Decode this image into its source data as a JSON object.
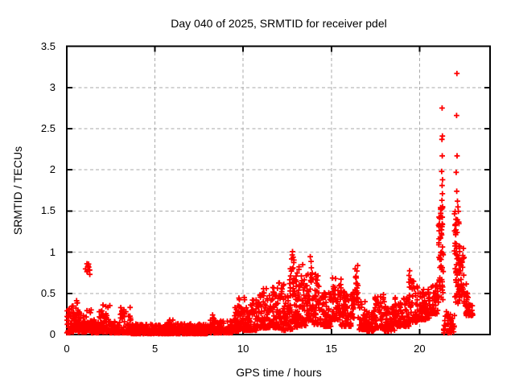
{
  "chart": {
    "title": "Day 040 of 2025, SRMTID for receiver pdel",
    "xlabel": "GPS time / hours",
    "ylabel": "SRMTID / TECUs"
  },
  "colors": {
    "marker": "#ff0000",
    "grid": "#aaaaaa",
    "border": "#000000",
    "background": "#ffffff",
    "text": "#000000"
  },
  "chart_data": {
    "type": "scatter",
    "title": "Day 040 of 2025, SRMTID for receiver pdel",
    "xlabel": "GPS time / hours",
    "ylabel": "SRMTID / TECUs",
    "legend": "none",
    "grid": true,
    "marker": "plus",
    "marker_color": "#ff0000",
    "xlim": [
      0,
      24
    ],
    "ylim": [
      0,
      3.5
    ],
    "x_ticks": [
      0,
      5,
      10,
      15,
      20
    ],
    "y_ticks": [
      0,
      0.5,
      1,
      1.5,
      2,
      2.5,
      3,
      3.5
    ],
    "series_name": "SRMTID",
    "envelope_format": "each segment = [hour_start, hour_end, point_count, value_min_TECU, value_max_TECU, low_bias_exponent]",
    "envelope_segments": [
      [
        0.0,
        0.3,
        40,
        0.02,
        0.32,
        2.2
      ],
      [
        0.3,
        0.5,
        26,
        0.03,
        0.38,
        2.0
      ],
      [
        0.5,
        0.62,
        18,
        0.05,
        0.45,
        1.6
      ],
      [
        0.62,
        0.8,
        22,
        0.03,
        0.3,
        2.0
      ],
      [
        0.8,
        1.12,
        38,
        0.03,
        0.26,
        2.2
      ],
      [
        1.0,
        1.35,
        11,
        0.72,
        0.86,
        1.0
      ],
      [
        1.12,
        1.4,
        32,
        0.05,
        0.3,
        2.0
      ],
      [
        1.4,
        1.8,
        46,
        0.02,
        0.2,
        2.2
      ],
      [
        1.8,
        2.05,
        28,
        0.03,
        0.33,
        2.0
      ],
      [
        2.05,
        2.45,
        44,
        0.03,
        0.36,
        2.0
      ],
      [
        2.45,
        3.0,
        60,
        0.02,
        0.16,
        2.2
      ],
      [
        3.0,
        3.65,
        72,
        0.02,
        0.34,
        2.4
      ],
      [
        3.65,
        5.0,
        150,
        0.01,
        0.13,
        2.2
      ],
      [
        5.0,
        5.7,
        78,
        0.01,
        0.12,
        2.2
      ],
      [
        5.7,
        6.1,
        46,
        0.01,
        0.18,
        2.2
      ],
      [
        6.1,
        8.1,
        220,
        0.01,
        0.13,
        2.2
      ],
      [
        8.1,
        8.5,
        46,
        0.02,
        0.26,
        2.2
      ],
      [
        8.5,
        9.4,
        100,
        0.02,
        0.17,
        2.2
      ],
      [
        9.4,
        9.75,
        40,
        0.04,
        0.35,
        2.0
      ],
      [
        9.75,
        10.1,
        40,
        0.05,
        0.5,
        1.8
      ],
      [
        10.1,
        10.9,
        90,
        0.05,
        0.42,
        2.2
      ],
      [
        10.9,
        11.5,
        70,
        0.08,
        0.56,
        2.0
      ],
      [
        11.5,
        12.1,
        70,
        0.08,
        0.66,
        1.8
      ],
      [
        12.1,
        12.55,
        52,
        0.05,
        0.62,
        1.7
      ],
      [
        12.55,
        12.72,
        22,
        0.05,
        0.8,
        1.4
      ],
      [
        12.72,
        12.88,
        26,
        0.05,
        1.04,
        1.1
      ],
      [
        12.88,
        13.1,
        28,
        0.08,
        0.75,
        1.5
      ],
      [
        13.1,
        13.55,
        54,
        0.1,
        0.86,
        1.6
      ],
      [
        13.55,
        13.78,
        28,
        0.15,
        0.8,
        1.5
      ],
      [
        13.78,
        13.95,
        22,
        0.15,
        0.96,
        1.2
      ],
      [
        13.95,
        14.55,
        66,
        0.12,
        0.74,
        1.8
      ],
      [
        14.55,
        15.05,
        56,
        0.1,
        0.55,
        2.0
      ],
      [
        15.05,
        15.55,
        56,
        0.18,
        0.74,
        1.8
      ],
      [
        15.55,
        16.15,
        66,
        0.1,
        0.56,
        2.0
      ],
      [
        16.15,
        16.33,
        20,
        0.2,
        0.6,
        1.5
      ],
      [
        16.33,
        16.52,
        20,
        0.4,
        0.92,
        1.0
      ],
      [
        16.52,
        17.0,
        52,
        0.06,
        0.42,
        2.0
      ],
      [
        17.0,
        17.45,
        48,
        0.04,
        0.3,
        2.0
      ],
      [
        17.45,
        18.0,
        60,
        0.08,
        0.5,
        2.0
      ],
      [
        18.0,
        18.6,
        64,
        0.04,
        0.34,
        2.0
      ],
      [
        18.6,
        19.4,
        88,
        0.1,
        0.5,
        2.0
      ],
      [
        19.4,
        19.7,
        34,
        0.15,
        0.78,
        1.5
      ],
      [
        19.7,
        19.9,
        24,
        0.15,
        0.6,
        1.8
      ],
      [
        19.9,
        20.6,
        78,
        0.18,
        0.56,
        2.0
      ],
      [
        20.6,
        21.08,
        52,
        0.25,
        0.62,
        1.8
      ],
      [
        21.08,
        21.35,
        62,
        0.4,
        1.56,
        1.0
      ],
      [
        21.35,
        21.75,
        32,
        0.02,
        0.28,
        1.8
      ],
      [
        21.75,
        22.0,
        22,
        0.02,
        0.25,
        1.8
      ],
      [
        21.98,
        22.3,
        66,
        0.35,
        1.5,
        1.0
      ],
      [
        22.3,
        22.55,
        26,
        0.45,
        1.05,
        1.3
      ],
      [
        22.5,
        22.75,
        16,
        0.35,
        0.62,
        1.5
      ],
      [
        22.58,
        23.02,
        30,
        0.22,
        0.38,
        1.3
      ]
    ],
    "notable_points_format": "[hour, TECU] isolated high outliers visible in the plot",
    "notable_points": [
      [
        21.28,
        2.75
      ],
      [
        21.3,
        2.41
      ],
      [
        21.27,
        2.37
      ],
      [
        21.29,
        2.17
      ],
      [
        21.26,
        1.98
      ],
      [
        21.31,
        1.88
      ],
      [
        21.28,
        1.81
      ],
      [
        21.3,
        1.71
      ],
      [
        21.27,
        1.63
      ],
      [
        22.12,
        3.17
      ],
      [
        22.1,
        2.66
      ],
      [
        22.13,
        2.17
      ],
      [
        22.08,
        1.97
      ],
      [
        22.11,
        1.74
      ],
      [
        22.15,
        1.62
      ],
      [
        22.18,
        1.55
      ]
    ],
    "seed": 20250409
  }
}
